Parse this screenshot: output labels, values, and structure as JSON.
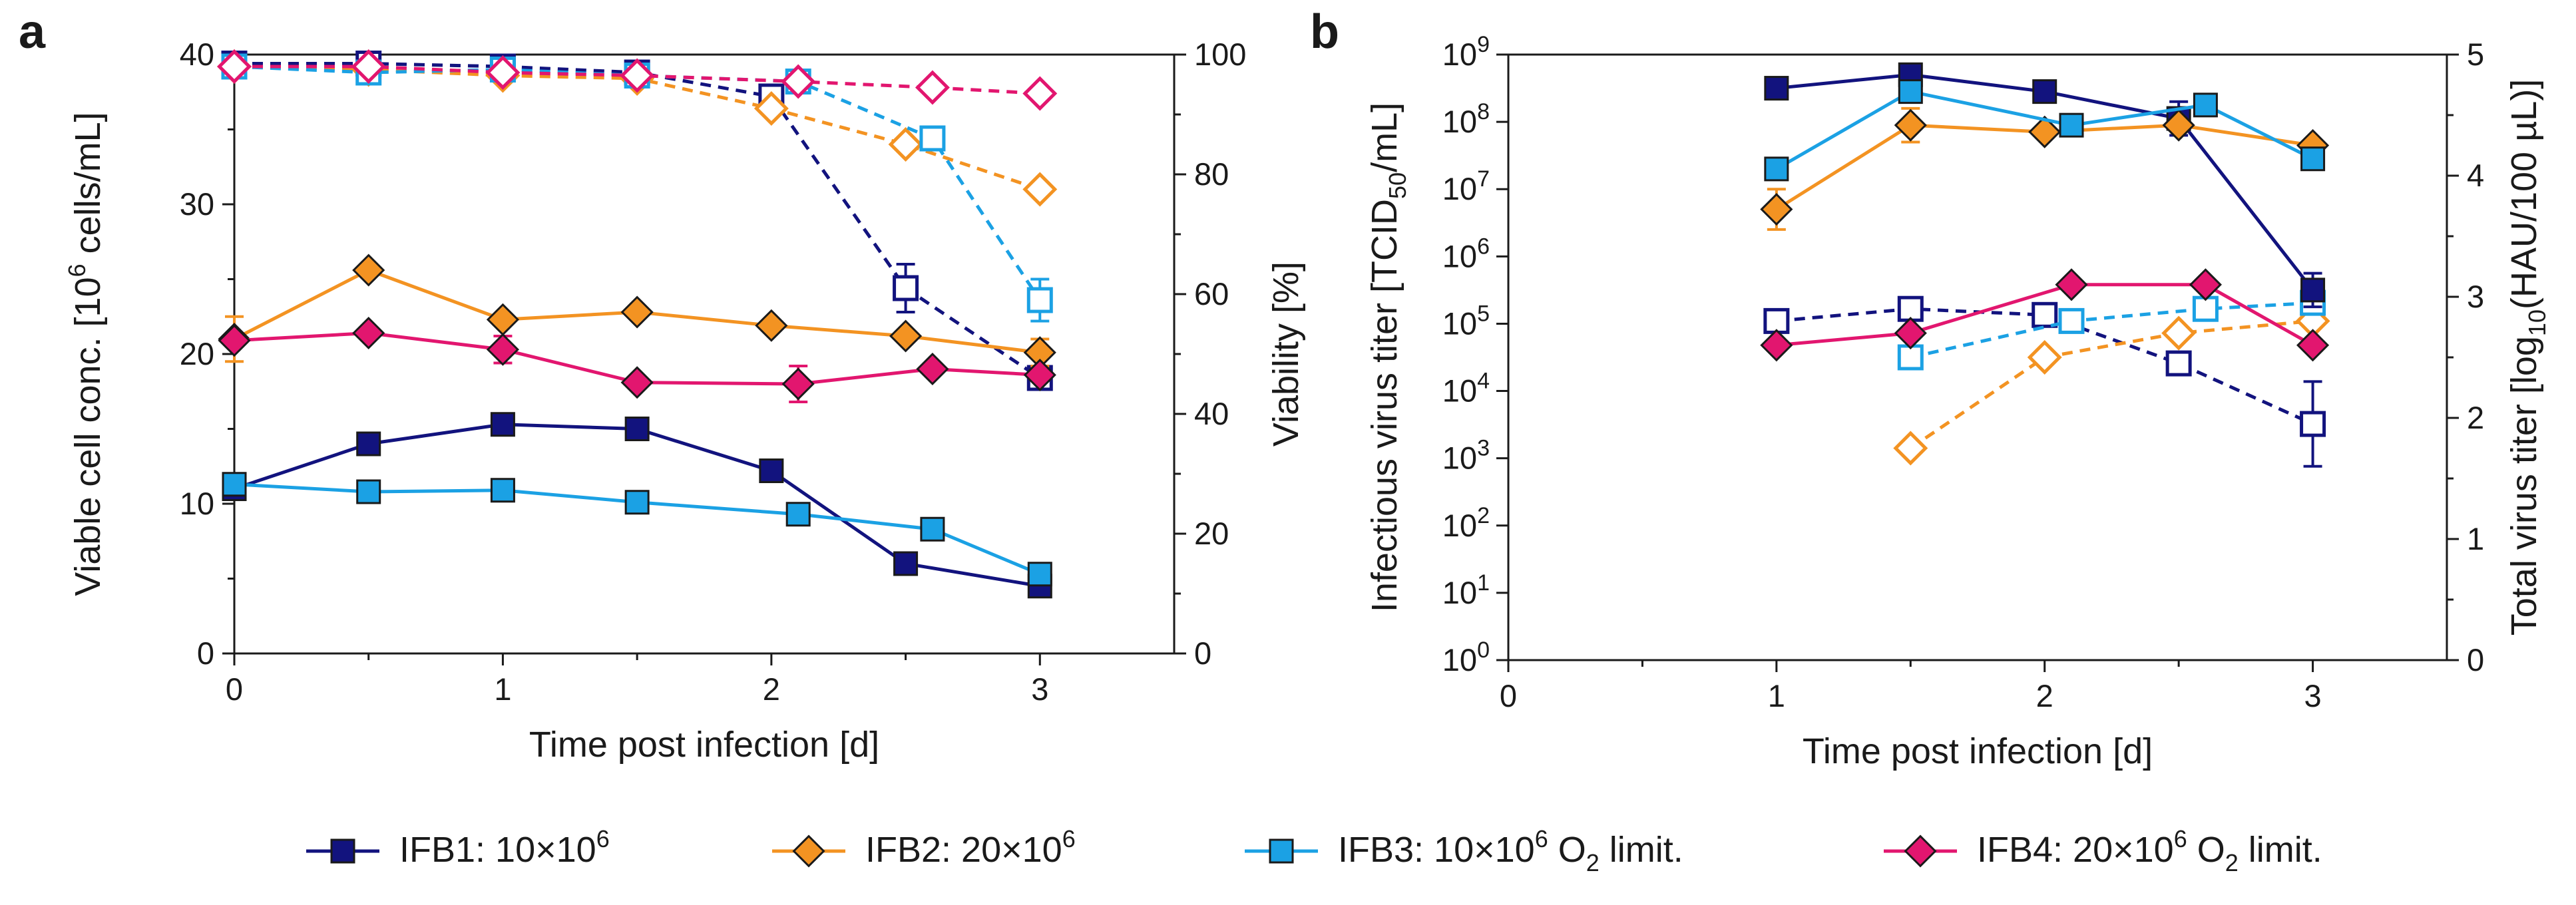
{
  "legend": {
    "items": [
      {
        "id": "IFB1",
        "name": "IFB1",
        "desc": "10×10",
        "sup": "6",
        "suffix": "",
        "sub_pre": "",
        "sub": "",
        "sub_post": "",
        "color": "#12137e",
        "marker": "square"
      },
      {
        "id": "IFB2",
        "name": "IFB2",
        "desc": "20×10",
        "sup": "6",
        "suffix": "",
        "sub_pre": "",
        "sub": "",
        "sub_post": "",
        "color": "#f39322",
        "marker": "diamond"
      },
      {
        "id": "IFB3",
        "name": "IFB3",
        "desc": "10×10",
        "sup": "6",
        "suffix": "",
        "sub_pre": " O",
        "sub": "2",
        "sub_post": " limit.",
        "color": "#1ba1e4",
        "marker": "square"
      },
      {
        "id": "IFB4",
        "name": "IFB4",
        "desc": "20×10",
        "sup": "6",
        "suffix": "",
        "sub_pre": " O",
        "sub": "2",
        "sub_post": " limit.",
        "color": "#e2166f",
        "marker": "diamond"
      }
    ]
  },
  "chart_data": [
    {
      "panel": "a",
      "type": "line",
      "xlabel": "Time post infection [d]",
      "xlim": [
        0,
        3.5
      ],
      "xticks": [
        0,
        1,
        2,
        3
      ],
      "ylabel_left": {
        "pre": "Viable cell conc. [10",
        "sup": "6",
        "post": " cells/mL]"
      },
      "ylim_left": [
        0,
        40
      ],
      "yticks_left": [
        0,
        10,
        20,
        30,
        40
      ],
      "ylabel_right": "Viability [%]",
      "ylim_right": [
        0,
        100
      ],
      "yticks_right": [
        0,
        20,
        40,
        60,
        80,
        100
      ],
      "series": [
        {
          "name": "IFB1",
          "quantity": "viable cell conc.",
          "axis": "left",
          "style": "solid",
          "color": "#12137e",
          "marker": "square",
          "filled": true,
          "x": [
            0,
            0.5,
            1,
            1.5,
            2,
            2.5,
            3
          ],
          "y": [
            11.0,
            14.0,
            15.3,
            15.0,
            12.2,
            6.0,
            4.5
          ],
          "err": [
            0.4,
            0,
            0,
            0,
            0,
            0,
            0.3
          ]
        },
        {
          "name": "IFB2",
          "quantity": "viable cell conc.",
          "axis": "left",
          "style": "solid",
          "color": "#f39322",
          "marker": "diamond",
          "filled": true,
          "x": [
            0,
            0.5,
            1,
            1.5,
            2,
            2.5,
            3
          ],
          "y": [
            21.0,
            25.6,
            22.3,
            22.8,
            21.9,
            21.2,
            20.1
          ],
          "err": [
            1.5,
            0,
            0,
            0,
            0,
            0,
            0.9
          ]
        },
        {
          "name": "IFB3",
          "quantity": "viable cell conc.",
          "axis": "left",
          "style": "solid",
          "color": "#1ba1e4",
          "marker": "square",
          "filled": true,
          "x": [
            0,
            0.5,
            1,
            1.5,
            2.1,
            2.6,
            3
          ],
          "y": [
            11.3,
            10.8,
            10.9,
            10.1,
            9.3,
            8.3,
            5.3
          ],
          "err": [
            0,
            0,
            0,
            0,
            0,
            0,
            0
          ]
        },
        {
          "name": "IFB4",
          "quantity": "viable cell conc.",
          "axis": "left",
          "style": "solid",
          "color": "#e2166f",
          "marker": "diamond",
          "filled": true,
          "x": [
            0,
            0.5,
            1,
            1.5,
            2.1,
            2.6,
            3
          ],
          "y": [
            20.9,
            21.4,
            20.3,
            18.1,
            18.0,
            19.0,
            18.6
          ],
          "err": [
            0,
            0,
            0.9,
            0,
            1.2,
            0,
            0
          ]
        },
        {
          "name": "IFB1",
          "quantity": "viability",
          "axis": "right",
          "style": "dashed",
          "color": "#12137e",
          "marker": "square",
          "filled": false,
          "x": [
            0,
            0.5,
            1,
            1.5,
            2,
            2.5,
            3
          ],
          "y": [
            98.5,
            98.5,
            98.0,
            97.0,
            93.0,
            61.0,
            46.0
          ],
          "err": [
            0,
            0,
            0,
            0,
            0,
            4.0,
            0
          ]
        },
        {
          "name": "IFB2",
          "quantity": "viability",
          "axis": "right",
          "style": "dashed",
          "color": "#f39322",
          "marker": "diamond",
          "filled": false,
          "x": [
            0,
            0.5,
            1,
            1.5,
            2,
            2.5,
            3
          ],
          "y": [
            98.0,
            97.5,
            96.5,
            96.0,
            91.0,
            85.0,
            77.5
          ],
          "err": [
            0,
            0,
            0,
            0,
            0,
            0,
            0
          ]
        },
        {
          "name": "IFB3",
          "quantity": "viability",
          "axis": "right",
          "style": "dashed",
          "color": "#1ba1e4",
          "marker": "square",
          "filled": false,
          "x": [
            0,
            0.5,
            1,
            1.5,
            2.1,
            2.6,
            3
          ],
          "y": [
            98.0,
            97.0,
            97.5,
            96.5,
            95.5,
            86.0,
            59.0
          ],
          "err": [
            0,
            0,
            0,
            0,
            0,
            0,
            3.5
          ]
        },
        {
          "name": "IFB4",
          "quantity": "viability",
          "axis": "right",
          "style": "dashed",
          "color": "#e2166f",
          "marker": "diamond",
          "filled": false,
          "x": [
            0,
            0.5,
            1,
            1.5,
            2.1,
            2.6,
            3
          ],
          "y": [
            98.0,
            98.0,
            97.0,
            96.5,
            95.5,
            94.5,
            93.5
          ],
          "err": [
            0,
            0,
            0,
            0,
            0,
            0,
            0
          ]
        }
      ]
    },
    {
      "panel": "b",
      "type": "line",
      "xlabel": "Time post infection [d]",
      "xlim": [
        0,
        3.5
      ],
      "xticks": [
        0,
        1,
        2,
        3
      ],
      "ylabel_left": {
        "pre": "Infectious virus titer [TCID",
        "sub": "50",
        "post": "/mL]"
      },
      "yscale_left": "log",
      "ylim_left_log10": [
        0,
        9
      ],
      "yticks_left": [
        {
          "base": "10",
          "exp": "0"
        },
        {
          "base": "10",
          "exp": "1"
        },
        {
          "base": "10",
          "exp": "2"
        },
        {
          "base": "10",
          "exp": "3"
        },
        {
          "base": "10",
          "exp": "4"
        },
        {
          "base": "10",
          "exp": "5"
        },
        {
          "base": "10",
          "exp": "6"
        },
        {
          "base": "10",
          "exp": "7"
        },
        {
          "base": "10",
          "exp": "8"
        },
        {
          "base": "10",
          "exp": "9"
        }
      ],
      "ylabel_right": {
        "pre": "Total virus titer [log",
        "sub": "10",
        "post": "(HAU/100 µL)]"
      },
      "ylim_right": [
        0,
        5
      ],
      "yticks_right": [
        0,
        1,
        2,
        3,
        4,
        5
      ],
      "series": [
        {
          "name": "IFB1",
          "quantity": "infectious virus titer (log10 TCID50/mL)",
          "axis": "left",
          "style": "solid",
          "color": "#12137e",
          "marker": "square",
          "filled": true,
          "x": [
            1,
            1.5,
            2,
            2.5,
            3
          ],
          "y": [
            8.5,
            8.7,
            8.45,
            8.05,
            5.5
          ],
          "err": [
            0,
            0,
            0.1,
            0.25,
            0.25
          ]
        },
        {
          "name": "IFB2",
          "quantity": "infectious virus titer (log10 TCID50/mL)",
          "axis": "left",
          "style": "solid",
          "color": "#f39322",
          "marker": "diamond",
          "filled": true,
          "x": [
            1,
            1.5,
            2,
            2.5,
            3
          ],
          "y": [
            6.7,
            7.95,
            7.85,
            7.95,
            7.65
          ],
          "err": [
            0.3,
            0.25,
            0,
            0,
            0
          ]
        },
        {
          "name": "IFB3",
          "quantity": "infectious virus titer (log10 TCID50/mL)",
          "axis": "left",
          "style": "solid",
          "color": "#1ba1e4",
          "marker": "square",
          "filled": true,
          "x": [
            1,
            1.5,
            2.1,
            2.6,
            3
          ],
          "y": [
            7.3,
            8.45,
            7.95,
            8.25,
            7.45
          ],
          "err": [
            0,
            0,
            0,
            0,
            0
          ]
        },
        {
          "name": "IFB4",
          "quantity": "infectious virus titer (log10 TCID50/mL)",
          "axis": "left",
          "style": "solid",
          "color": "#e2166f",
          "marker": "diamond",
          "filled": true,
          "x": [],
          "y": [],
          "err": []
        },
        {
          "name": "IFB1",
          "quantity": "total virus titer (log10 HAU/100 µL)",
          "axis": "right",
          "style": "dashed",
          "color": "#12137e",
          "marker": "square",
          "filled": false,
          "x": [
            1,
            1.5,
            2,
            2.5,
            3
          ],
          "y": [
            2.8,
            2.9,
            2.85,
            2.45,
            1.95
          ],
          "err": [
            0,
            0,
            0,
            0,
            0.35
          ]
        },
        {
          "name": "IFB2",
          "quantity": "total virus titer (log10 HAU/100 µL)",
          "axis": "right",
          "style": "dashed",
          "color": "#f39322",
          "marker": "diamond",
          "filled": false,
          "x": [
            1.5,
            2,
            2.5,
            3
          ],
          "y": [
            1.75,
            2.5,
            2.7,
            2.8
          ],
          "err": [
            0,
            0,
            0,
            0
          ]
        },
        {
          "name": "IFB3",
          "quantity": "total virus titer (log10 HAU/100 µL)",
          "axis": "right",
          "style": "dashed",
          "color": "#1ba1e4",
          "marker": "square",
          "filled": false,
          "x": [
            1.5,
            2.1,
            2.6,
            3
          ],
          "y": [
            2.5,
            2.8,
            2.9,
            2.95
          ],
          "err": [
            0,
            0,
            0,
            0
          ]
        },
        {
          "name": "IFB4",
          "quantity": "total virus titer (log10 HAU/100 µL)",
          "axis": "right",
          "style": "solid",
          "color": "#e2166f",
          "marker": "diamond",
          "filled": true,
          "x": [
            1,
            1.5,
            2.1,
            2.6,
            3
          ],
          "y": [
            2.6,
            2.7,
            3.1,
            3.1,
            2.6
          ],
          "err": [
            0,
            0,
            0,
            0,
            0
          ]
        }
      ]
    }
  ]
}
